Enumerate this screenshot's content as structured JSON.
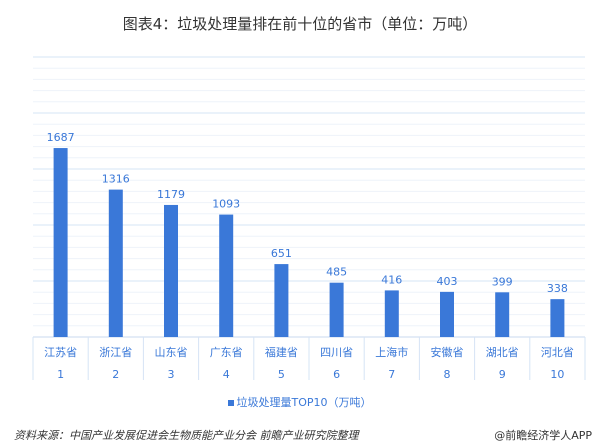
{
  "chart_data": {
    "type": "bar",
    "title": "图表4：垃圾处理量排在前十位的省市（单位：万吨）",
    "categories": [
      "江苏省",
      "浙江省",
      "山东省",
      "广东省",
      "福建省",
      "四川省",
      "上海市",
      "安徽省",
      "湖北省",
      "河北省"
    ],
    "ranks": [
      "1",
      "2",
      "3",
      "4",
      "5",
      "6",
      "7",
      "8",
      "9",
      "10"
    ],
    "series": [
      {
        "name": "垃圾处理量TOP10（万吨）",
        "values": [
          1687,
          1316,
          1179,
          1093,
          651,
          485,
          416,
          403,
          399,
          338
        ]
      }
    ],
    "ylim": [
      0,
      2500
    ],
    "grid": true,
    "legend": "bottom",
    "color": "#3a78d8"
  },
  "footer": {
    "source": "资料来源：中国产业发展促进会生物质能产业分会 前瞻产业研究院整理",
    "brand": "@前瞻经济学人APP"
  }
}
